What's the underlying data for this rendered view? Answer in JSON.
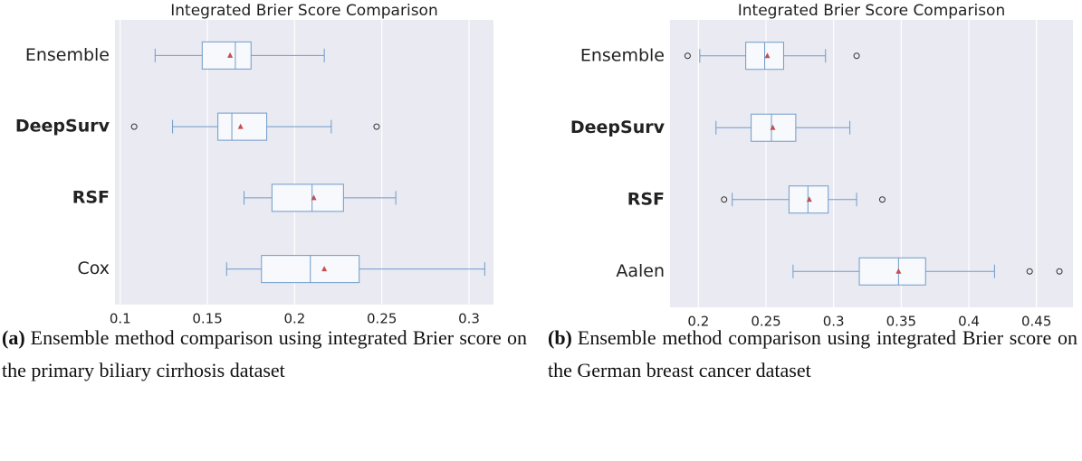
{
  "chart_data": [
    {
      "type": "box",
      "title": "Integrated Brier Score Comparison",
      "categories": [
        "Ensemble",
        "DeepSurv",
        "RSF",
        "Cox"
      ],
      "bold_categories": [
        false,
        true,
        true,
        false
      ],
      "boxes": [
        {
          "whislo": 0.12,
          "q1": 0.147,
          "median": 0.166,
          "q3": 0.175,
          "whishi": 0.217,
          "mean": 0.163,
          "fliers": []
        },
        {
          "whislo": 0.13,
          "q1": 0.156,
          "median": 0.164,
          "q3": 0.184,
          "whishi": 0.221,
          "mean": 0.169,
          "fliers": [
            0.108,
            0.247
          ]
        },
        {
          "whislo": 0.171,
          "q1": 0.187,
          "median": 0.21,
          "q3": 0.228,
          "whishi": 0.258,
          "mean": 0.211,
          "fliers": []
        },
        {
          "whislo": 0.161,
          "q1": 0.181,
          "median": 0.209,
          "q3": 0.237,
          "whishi": 0.309,
          "mean": 0.217,
          "fliers": []
        }
      ],
      "color": "#6f9bc9",
      "mean_color": "#c44e52",
      "background": "#eaeaf2",
      "grid": true,
      "xlim": [
        0.097,
        0.314
      ],
      "xticks": [
        0.1,
        0.15,
        0.2,
        0.25,
        0.3
      ],
      "caption": {
        "label": "(a)",
        "text": "Ensemble method comparison using integrated Brier score on the primary biliary cirrhosis dataset"
      }
    },
    {
      "type": "box",
      "title": "Integrated Brier Score Comparison",
      "categories": [
        "Ensemble",
        "DeepSurv",
        "RSF",
        "Aalen"
      ],
      "bold_categories": [
        false,
        true,
        true,
        false
      ],
      "boxes": [
        {
          "whislo": 0.201,
          "q1": 0.235,
          "median": 0.249,
          "q3": 0.263,
          "whishi": 0.294,
          "mean": 0.251,
          "fliers": [
            0.192,
            0.317
          ]
        },
        {
          "whislo": 0.213,
          "q1": 0.239,
          "median": 0.254,
          "q3": 0.272,
          "whishi": 0.312,
          "mean": 0.255,
          "fliers": []
        },
        {
          "whislo": 0.225,
          "q1": 0.267,
          "median": 0.281,
          "q3": 0.296,
          "whishi": 0.317,
          "mean": 0.282,
          "fliers": [
            0.219,
            0.336
          ]
        },
        {
          "whislo": 0.27,
          "q1": 0.319,
          "median": 0.348,
          "q3": 0.368,
          "whishi": 0.419,
          "mean": 0.348,
          "fliers": [
            0.445,
            0.467
          ]
        }
      ],
      "color": "#6f9bc9",
      "mean_color": "#c44e52",
      "background": "#eaeaf2",
      "grid": true,
      "xlim": [
        0.179,
        0.477
      ],
      "xticks": [
        0.2,
        0.25,
        0.3,
        0.35,
        0.4,
        0.45
      ],
      "caption": {
        "label": "(b)",
        "text": "Ensemble method comparison using integrated Brier score on the German breast cancer dataset"
      }
    }
  ]
}
